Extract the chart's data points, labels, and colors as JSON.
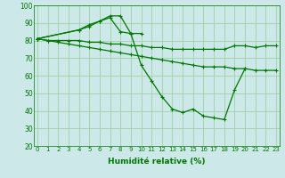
{
  "segments": [
    {
      "x": [
        0,
        1,
        2,
        3,
        4,
        5,
        6,
        7,
        8,
        9,
        10,
        11,
        12,
        13,
        14,
        15,
        16,
        17,
        18,
        19,
        20,
        21,
        22,
        23
      ],
      "y": [
        81,
        80,
        80,
        80,
        80,
        79,
        79,
        78,
        78,
        77,
        77,
        76,
        76,
        75,
        75,
        75,
        75,
        75,
        75,
        77,
        77,
        76,
        77,
        77
      ]
    },
    {
      "x": [
        0,
        1,
        2,
        3,
        4,
        5,
        6,
        7,
        8,
        9,
        10,
        11,
        12,
        13,
        14,
        15,
        16,
        17,
        18,
        19,
        20,
        21,
        22,
        23
      ],
      "y": [
        81,
        80,
        79,
        78,
        77,
        76,
        75,
        74,
        73,
        72,
        71,
        70,
        69,
        68,
        67,
        66,
        65,
        65,
        65,
        64,
        64,
        63,
        63,
        63
      ]
    },
    {
      "x": [
        0,
        4,
        5,
        6,
        7,
        8,
        9,
        10,
        11,
        12,
        13,
        14,
        15,
        16,
        17,
        18,
        19,
        20
      ],
      "y": [
        81,
        86,
        88,
        91,
        94,
        94,
        84,
        66,
        57,
        48,
        41,
        39,
        41,
        37,
        36,
        35,
        52,
        64
      ]
    },
    {
      "x": [
        0,
        4,
        5,
        6,
        7,
        8,
        9,
        10
      ],
      "y": [
        81,
        86,
        89,
        91,
        93,
        85,
        84,
        84
      ]
    }
  ],
  "ylim": [
    20,
    100
  ],
  "xlim": [
    -0.3,
    23.3
  ],
  "bg_color": "#cce8e8",
  "grid_color": "#99cc99",
  "line_color": "#007700",
  "marker": "+",
  "markersize": 3,
  "linewidth": 0.9,
  "xlabel": "Humidité relative (%)",
  "tick_fontsize": 5,
  "xlabel_fontsize": 6.5
}
